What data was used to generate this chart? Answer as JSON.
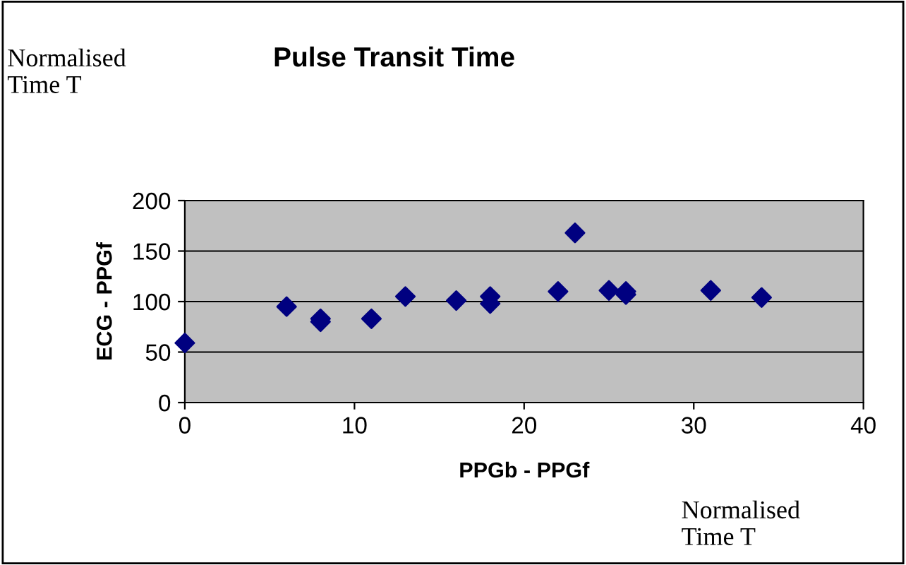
{
  "chart_data": {
    "type": "scatter",
    "title": "Pulse Transit Time",
    "xlabel": "PPGb - PPGf",
    "ylabel": "ECG - PPGf",
    "annotations": [
      "Normalised\nTime T",
      "Normalised\nTime T"
    ],
    "x": [
      0,
      6,
      8,
      8,
      11,
      13,
      16,
      18,
      18,
      22,
      23,
      25,
      26,
      26,
      31,
      34
    ],
    "series": [
      {
        "color": "#000080",
        "values": [
          59,
          95,
          83,
          80,
          83,
          105,
          101,
          105,
          98,
          110,
          168,
          111,
          110,
          107,
          111,
          104
        ]
      }
    ],
    "xlim": [
      0,
      40
    ],
    "xticks": [
      0,
      10,
      20,
      30,
      40
    ],
    "ylim": [
      0,
      200
    ],
    "yticks": [
      0,
      50,
      100,
      150,
      200
    ],
    "grid": "y",
    "legend": false,
    "marker": "diamond"
  }
}
